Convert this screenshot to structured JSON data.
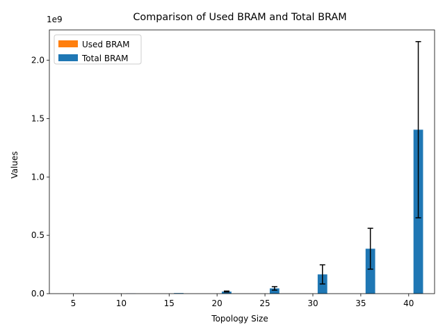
{
  "chart_data": {
    "type": "bar",
    "title": "Comparison of Used BRAM and Total BRAM",
    "xlabel": "Topology Size",
    "ylabel": "Values",
    "y_scale_label": "1e9",
    "y_multiplier": 1000000000,
    "categories": [
      "5",
      "10",
      "15",
      "20",
      "25",
      "30",
      "35",
      "40"
    ],
    "x": [
      5,
      10,
      15,
      20,
      25,
      30,
      35,
      40
    ],
    "ylim": [
      0,
      2260000000
    ],
    "y_ticks": [
      0,
      500000000,
      1000000000,
      1500000000,
      2000000000
    ],
    "y_tick_labels": [
      "0.0",
      "0.5",
      "1.0",
      "1.5",
      "2.0"
    ],
    "legend_position": "upper left",
    "grid": false,
    "series": [
      {
        "name": "Used BRAM",
        "color": "#ff7f0e",
        "values": [
          0,
          0,
          0,
          0,
          0,
          0,
          0,
          0
        ]
      },
      {
        "name": "Total BRAM",
        "color": "#1f77b4",
        "values": [
          100000,
          1500000,
          5000000,
          18000000,
          45000000,
          165000000,
          385000000,
          1405000000
        ],
        "error": [
          null,
          null,
          null,
          4000000,
          15000000,
          82000000,
          175000000,
          755000000
        ]
      }
    ]
  }
}
